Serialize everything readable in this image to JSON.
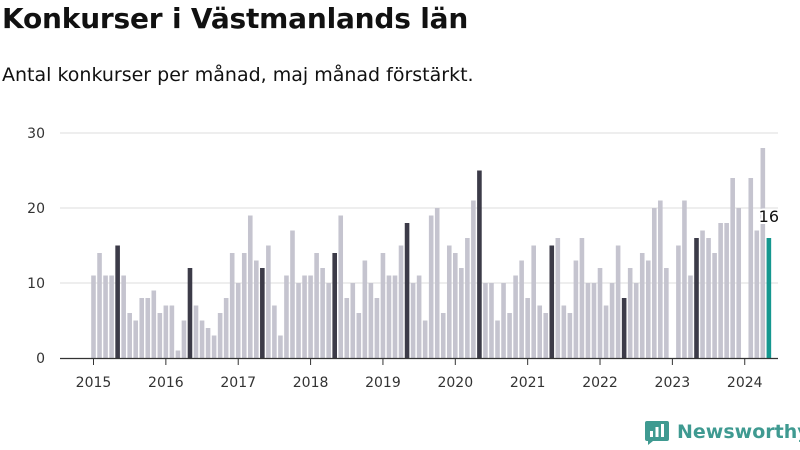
{
  "title": "Konkurser i Västmanlands län",
  "subtitle": "Antal konkurser per månad, maj månad förstärkt.",
  "brand": {
    "name": "Newsworthy",
    "color": "#3f9a91",
    "icon": "newsworthy-logo-icon"
  },
  "colors": {
    "bar": "#c5c4cf",
    "highlight": "#3c3b48",
    "latest": "#14978f",
    "grid": "#dddddd",
    "axis": "#333333"
  },
  "chart_data": {
    "type": "bar",
    "title": "Konkurser i Västmanlands län",
    "subtitle": "Antal konkurser per månad, maj månad förstärkt.",
    "xlabel": "",
    "ylabel": "",
    "ylim": [
      0,
      30
    ],
    "yticks": [
      0,
      10,
      20,
      30
    ],
    "xtick_labels": [
      "2015",
      "2016",
      "2017",
      "2018",
      "2019",
      "2020",
      "2021",
      "2022",
      "2023",
      "2024"
    ],
    "grid": true,
    "start": "2015-01",
    "end": "2024-05",
    "highlight_month": "maj",
    "annotation": {
      "month": "2024-05",
      "value": 16,
      "label": "16"
    },
    "series": [
      {
        "year": "2015",
        "values": [
          11,
          14,
          11,
          11,
          15,
          11,
          6,
          5,
          8,
          8,
          9,
          6
        ]
      },
      {
        "year": "2016",
        "values": [
          7,
          7,
          1,
          5,
          12,
          7,
          5,
          4,
          3,
          6,
          8,
          14
        ]
      },
      {
        "year": "2017",
        "values": [
          10,
          14,
          19,
          13,
          12,
          15,
          7,
          3,
          11,
          17,
          10,
          11
        ]
      },
      {
        "year": "2018",
        "values": [
          11,
          14,
          12,
          10,
          14,
          19,
          8,
          10,
          6,
          13,
          10,
          8
        ]
      },
      {
        "year": "2019",
        "values": [
          14,
          11,
          11,
          15,
          18,
          10,
          11,
          5,
          19,
          20,
          6,
          15
        ]
      },
      {
        "year": "2020",
        "values": [
          14,
          12,
          16,
          21,
          25,
          10,
          10,
          5,
          10,
          6,
          11,
          13
        ]
      },
      {
        "year": "2021",
        "values": [
          8,
          15,
          7,
          6,
          15,
          16,
          7,
          6,
          13,
          16,
          10,
          10
        ]
      },
      {
        "year": "2022",
        "values": [
          12,
          7,
          10,
          15,
          8,
          12,
          10,
          14,
          13,
          20,
          21,
          12
        ]
      },
      {
        "year": "2023",
        "values": [
          0,
          15,
          21,
          11,
          16,
          17,
          16,
          14,
          18,
          18,
          24,
          20
        ]
      },
      {
        "year": "2024",
        "values": [
          0,
          24,
          17,
          28,
          16
        ]
      }
    ]
  }
}
